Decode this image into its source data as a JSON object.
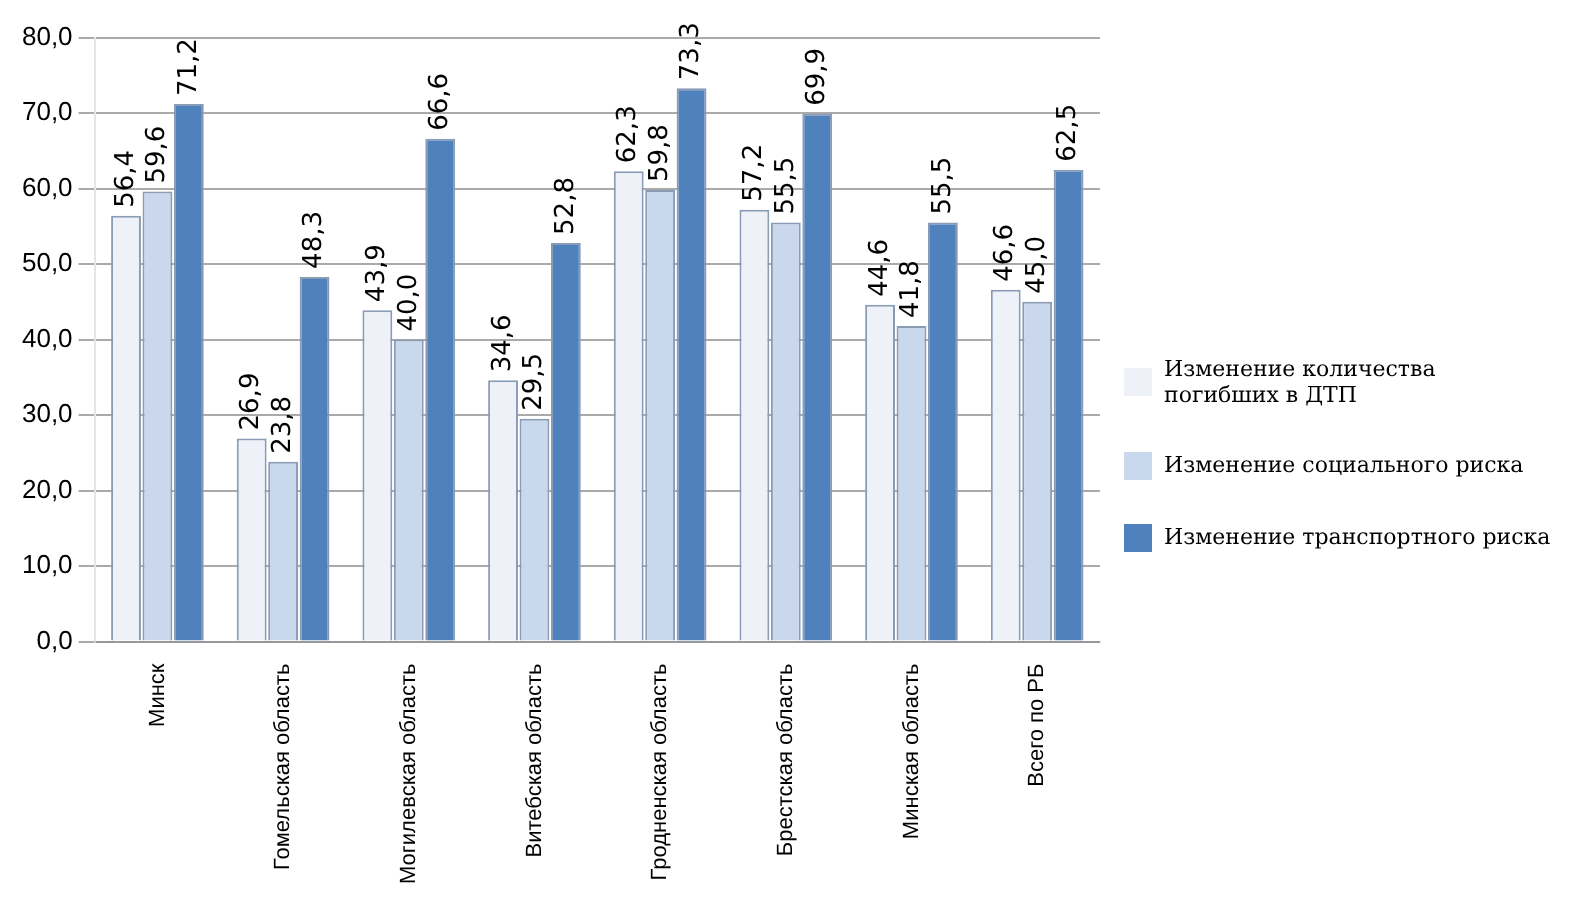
{
  "chart_data": {
    "type": "bar",
    "categories": [
      "Минск",
      "Гомельская область",
      "Могилевская область",
      "Витебская область",
      "Гродненская область",
      "Брестская область",
      "Минская область",
      "Всего по РБ"
    ],
    "series": [
      {
        "name": "Изменение  количества погибших в ДТП",
        "color": "#eef2f8",
        "values": [
          56.4,
          26.9,
          43.9,
          34.6,
          62.3,
          57.2,
          44.6,
          46.6
        ],
        "value_labels": [
          "56,4",
          "26,9",
          "43,9",
          "34,6",
          "62,3",
          "57,2",
          "44,6",
          "46,6"
        ]
      },
      {
        "name": "Изменение социального риска",
        "color": "#c9d8ec",
        "values": [
          59.6,
          23.8,
          40.0,
          29.5,
          59.8,
          55.5,
          41.8,
          45.0
        ],
        "value_labels": [
          "59,6",
          "23,8",
          "40,0",
          "29,5",
          "59,8",
          "55,5",
          "41,8",
          "45,0"
        ]
      },
      {
        "name": "Изменение транспортного риска",
        "color": "#4f81bd",
        "values": [
          71.2,
          48.3,
          66.6,
          52.8,
          73.3,
          69.9,
          55.5,
          62.5
        ],
        "value_labels": [
          "71,2",
          "48,3",
          "66,6",
          "52,8",
          "73,3",
          "69,9",
          "55,5",
          "62,5"
        ]
      }
    ],
    "ylim": [
      0,
      80
    ],
    "yticks": [
      {
        "value": 0,
        "label": "0,0"
      },
      {
        "value": 10,
        "label": "10,0"
      },
      {
        "value": 20,
        "label": "20,0"
      },
      {
        "value": 30,
        "label": "30,0"
      },
      {
        "value": 40,
        "label": "40,0"
      },
      {
        "value": 50,
        "label": "50,0"
      },
      {
        "value": 60,
        "label": "60,0"
      },
      {
        "value": 70,
        "label": "70,0"
      },
      {
        "value": 80,
        "label": "80,0"
      }
    ],
    "grid": "y",
    "legend": "right"
  }
}
